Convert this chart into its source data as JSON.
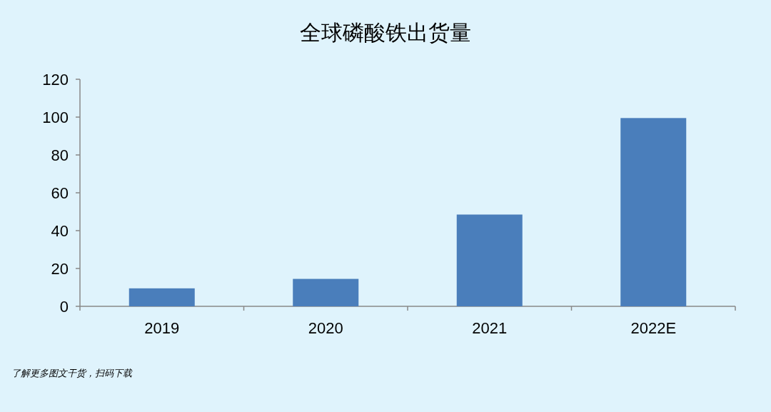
{
  "chart_data": {
    "type": "bar",
    "title": "全球磷酸铁出货量",
    "categories": [
      "2019",
      "2020",
      "2021",
      "2022E"
    ],
    "values": [
      9.5,
      14.5,
      48.5,
      99.5
    ],
    "color": "#4a7ebb",
    "ylim": [
      0,
      120
    ],
    "yticks": [
      0,
      20,
      40,
      60,
      80,
      100,
      120
    ],
    "grid": false,
    "annotations": [
      "了解更多图文干货，扫码下载"
    ]
  }
}
